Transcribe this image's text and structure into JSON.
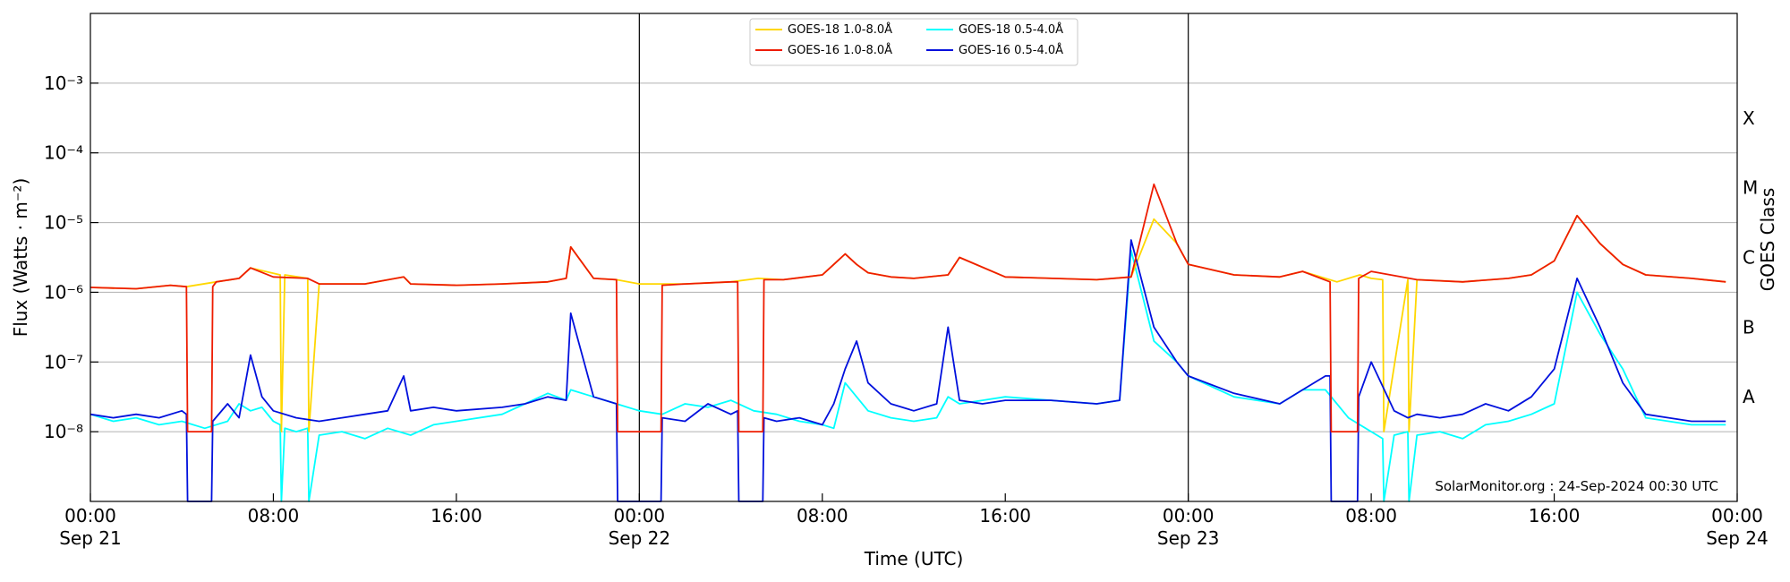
{
  "chart_data": {
    "type": "line",
    "title": "",
    "xlabel": "Time (UTC)",
    "ylabel": "Flux (Watts · m⁻²)",
    "y2label": "GOES Class",
    "yscale": "log",
    "xlim_hours": [
      0,
      72
    ],
    "ylim": [
      1e-09,
      0.01
    ],
    "grid": "horizontal",
    "legend_position": "top-center",
    "credit": "SolarMonitor.org : 24-Sep-2024 00:30 UTC",
    "x_ticks": [
      {
        "hours": 0,
        "time": "00:00",
        "date": "Sep 21"
      },
      {
        "hours": 8,
        "time": "08:00",
        "date": ""
      },
      {
        "hours": 16,
        "time": "16:00",
        "date": ""
      },
      {
        "hours": 24,
        "time": "00:00",
        "date": "Sep 22"
      },
      {
        "hours": 32,
        "time": "08:00",
        "date": ""
      },
      {
        "hours": 40,
        "time": "16:00",
        "date": ""
      },
      {
        "hours": 48,
        "time": "00:00",
        "date": "Sep 23"
      },
      {
        "hours": 56,
        "time": "08:00",
        "date": ""
      },
      {
        "hours": 64,
        "time": "16:00",
        "date": ""
      },
      {
        "hours": 72,
        "time": "00:00",
        "date": "Sep 24"
      }
    ],
    "day_dividers_hours": [
      24,
      48
    ],
    "y_ticks": [
      {
        "exp": -8,
        "label": "10⁻⁸"
      },
      {
        "exp": -7,
        "label": "10⁻⁷"
      },
      {
        "exp": -6,
        "label": "10⁻⁶"
      },
      {
        "exp": -5,
        "label": "10⁻⁵"
      },
      {
        "exp": -4,
        "label": "10⁻⁴"
      },
      {
        "exp": -3,
        "label": "10⁻³"
      }
    ],
    "goes_classes": [
      {
        "label": "A",
        "exp": -7.5
      },
      {
        "label": "B",
        "exp": -6.5
      },
      {
        "label": "C",
        "exp": -5.5
      },
      {
        "label": "M",
        "exp": -4.5
      },
      {
        "label": "X",
        "exp": -3.5
      }
    ],
    "series": [
      {
        "name": "GOES-18 1.0-8.0Å",
        "color": "#ffd700",
        "x_hours": [
          0,
          2,
          3.5,
          4.2,
          5.5,
          6.5,
          7,
          8.3,
          8.35,
          8.5,
          9.5,
          9.55,
          10,
          12,
          13.7,
          14,
          16,
          18,
          20,
          20.8,
          21,
          22,
          23,
          24,
          26,
          28,
          29.2,
          30.3,
          32,
          32.5,
          33,
          33.5,
          34,
          35,
          36,
          37.5,
          38,
          40,
          44,
          45.5,
          46.5,
          47.5,
          48,
          50,
          52,
          53,
          54.5,
          55.5,
          56,
          56.5,
          56.55,
          57.6,
          57.65,
          58,
          60,
          62,
          63,
          64,
          65,
          66,
          67,
          68,
          70,
          71.5
        ],
        "y_exp": [
          -5.93,
          -5.95,
          -5.9,
          -5.92,
          -5.85,
          -5.8,
          -5.65,
          -5.75,
          -8.0,
          -5.75,
          -5.8,
          -8.0,
          -5.88,
          -5.88,
          -5.78,
          -5.88,
          -5.9,
          -5.88,
          -5.85,
          -5.8,
          -5.35,
          -5.8,
          -5.82,
          -5.88,
          -5.88,
          -5.85,
          -5.8,
          -5.82,
          -5.75,
          -5.6,
          -5.45,
          -5.6,
          -5.72,
          -5.78,
          -5.8,
          -5.75,
          -5.5,
          -5.78,
          -5.82,
          -5.78,
          -4.95,
          -5.3,
          -5.6,
          -5.75,
          -5.78,
          -5.7,
          -5.85,
          -5.75,
          -5.8,
          -5.82,
          -8.0,
          -5.82,
          -8.0,
          -5.82,
          -5.85,
          -5.8,
          -5.75,
          -5.55,
          -4.9,
          -5.3,
          -5.6,
          -5.75,
          -5.8,
          -5.85
        ]
      },
      {
        "name": "GOES-16 1.0-8.0Å",
        "color": "#ee1c00",
        "x_hours": [
          0,
          2,
          3.5,
          4.2,
          4.25,
          5.3,
          5.35,
          5.5,
          6.5,
          7,
          8,
          9.5,
          10,
          12,
          13.7,
          14,
          16,
          18,
          20,
          20.8,
          21,
          22,
          23,
          23.05,
          24,
          24.95,
          25,
          26,
          28,
          28.3,
          28.35,
          29.4,
          29.45,
          30.3,
          32,
          32.5,
          33,
          33.5,
          34,
          35,
          36,
          37.5,
          38,
          40,
          44,
          45.5,
          46.5,
          47.5,
          48,
          50,
          52,
          53,
          54.2,
          54.25,
          55.4,
          55.45,
          56,
          58,
          60,
          62,
          63,
          64,
          65,
          66,
          67,
          68,
          70,
          71.5
        ],
        "y_exp": [
          -5.93,
          -5.95,
          -5.9,
          -5.92,
          -8.0,
          -8.0,
          -5.92,
          -5.85,
          -5.8,
          -5.65,
          -5.78,
          -5.8,
          -5.88,
          -5.88,
          -5.78,
          -5.88,
          -5.9,
          -5.88,
          -5.85,
          -5.8,
          -5.35,
          -5.8,
          -5.82,
          -8.0,
          -8.0,
          -8.0,
          -5.9,
          -5.88,
          -5.85,
          -5.85,
          -8.0,
          -8.0,
          -5.82,
          -5.82,
          -5.75,
          -5.6,
          -5.45,
          -5.6,
          -5.72,
          -5.78,
          -5.8,
          -5.75,
          -5.5,
          -5.78,
          -5.82,
          -5.78,
          -4.45,
          -5.3,
          -5.6,
          -5.75,
          -5.78,
          -5.7,
          -5.85,
          -8.0,
          -8.0,
          -5.8,
          -5.7,
          -5.82,
          -5.85,
          -5.8,
          -5.75,
          -5.55,
          -4.9,
          -5.3,
          -5.6,
          -5.75,
          -5.8,
          -5.85
        ]
      },
      {
        "name": "GOES-18 0.5-4.0Å",
        "color": "#00ffff",
        "x_hours": [
          0,
          1,
          2,
          3,
          4,
          5,
          6,
          6.5,
          7,
          7.5,
          8,
          8.3,
          8.35,
          8.5,
          9,
          9.5,
          9.55,
          10,
          11,
          12,
          13,
          14,
          15,
          16,
          18,
          19,
          20,
          20.8,
          21,
          22,
          23,
          24,
          25,
          26,
          27,
          28,
          29,
          30,
          31,
          32,
          32.5,
          33,
          33.5,
          34,
          35,
          36,
          37,
          37.5,
          38,
          39,
          40,
          42,
          44,
          45,
          45.5,
          46.5,
          47.5,
          48,
          50,
          52,
          53,
          54,
          55,
          55.5,
          56,
          56.5,
          56.55,
          57,
          57.6,
          57.65,
          58,
          59,
          60,
          61,
          62,
          63,
          64,
          65,
          66,
          67,
          68,
          69,
          70,
          71.5
        ],
        "y_exp": [
          -7.75,
          -7.85,
          -7.8,
          -7.9,
          -7.85,
          -7.95,
          -7.85,
          -7.6,
          -7.7,
          -7.65,
          -7.85,
          -7.9,
          -9.0,
          -7.95,
          -8.0,
          -7.95,
          -9.0,
          -8.05,
          -8.0,
          -8.1,
          -7.95,
          -8.05,
          -7.9,
          -7.85,
          -7.75,
          -7.6,
          -7.45,
          -7.55,
          -7.4,
          -7.5,
          -7.6,
          -7.7,
          -7.75,
          -7.6,
          -7.65,
          -7.55,
          -7.7,
          -7.75,
          -7.85,
          -7.9,
          -7.95,
          -7.3,
          -7.5,
          -7.7,
          -7.8,
          -7.85,
          -7.8,
          -7.5,
          -7.6,
          -7.55,
          -7.5,
          -7.55,
          -7.6,
          -7.55,
          -5.4,
          -6.7,
          -7.0,
          -7.2,
          -7.5,
          -7.6,
          -7.4,
          -7.4,
          -7.8,
          -7.9,
          -8.0,
          -8.1,
          -9.0,
          -8.05,
          -8.0,
          -9.0,
          -8.05,
          -8.0,
          -8.1,
          -7.9,
          -7.85,
          -7.75,
          -7.6,
          -6.0,
          -6.6,
          -7.1,
          -7.8,
          -7.85,
          -7.9,
          -7.9
        ]
      },
      {
        "name": "GOES-16 0.5-4.0Å",
        "color": "#0010dd",
        "x_hours": [
          0,
          1,
          2,
          3,
          4,
          4.2,
          4.25,
          5.3,
          5.35,
          6,
          6.5,
          7,
          7.5,
          8,
          9,
          10,
          11,
          12,
          13,
          13.7,
          14,
          15,
          16,
          18,
          19,
          20,
          20.8,
          21,
          22,
          23,
          23.05,
          24,
          24.95,
          25,
          26,
          27,
          28,
          28.3,
          28.35,
          29.4,
          29.45,
          30,
          31,
          32,
          32.5,
          33,
          33.5,
          34,
          35,
          36,
          37,
          37.5,
          38,
          39,
          40,
          42,
          44,
          45,
          45.5,
          46.5,
          47.5,
          48,
          50,
          52,
          53,
          54,
          54.2,
          54.25,
          55.4,
          55.45,
          56,
          57,
          57.6,
          58,
          59,
          60,
          61,
          62,
          63,
          64,
          65,
          66,
          67,
          68,
          69,
          70,
          71.5
        ],
        "y_exp": [
          -7.75,
          -7.8,
          -7.75,
          -7.8,
          -7.7,
          -7.75,
          -9.0,
          -9.0,
          -7.85,
          -7.6,
          -7.8,
          -6.9,
          -7.5,
          -7.7,
          -7.8,
          -7.85,
          -7.8,
          -7.75,
          -7.7,
          -7.2,
          -7.7,
          -7.65,
          -7.7,
          -7.65,
          -7.6,
          -7.5,
          -7.55,
          -6.3,
          -7.5,
          -7.6,
          -9.0,
          -9.0,
          -9.0,
          -7.8,
          -7.85,
          -7.6,
          -7.75,
          -7.7,
          -9.0,
          -9.0,
          -7.8,
          -7.85,
          -7.8,
          -7.9,
          -7.6,
          -7.1,
          -6.7,
          -7.3,
          -7.6,
          -7.7,
          -7.6,
          -6.5,
          -7.55,
          -7.6,
          -7.55,
          -7.55,
          -7.6,
          -7.55,
          -5.25,
          -6.5,
          -7.0,
          -7.2,
          -7.45,
          -7.6,
          -7.4,
          -7.2,
          -7.2,
          -9.0,
          -9.0,
          -7.5,
          -7.0,
          -7.7,
          -7.8,
          -7.75,
          -7.8,
          -7.75,
          -7.6,
          -7.7,
          -7.5,
          -7.1,
          -5.8,
          -6.5,
          -7.3,
          -7.75,
          -7.8,
          -7.85,
          -7.85
        ]
      }
    ]
  }
}
